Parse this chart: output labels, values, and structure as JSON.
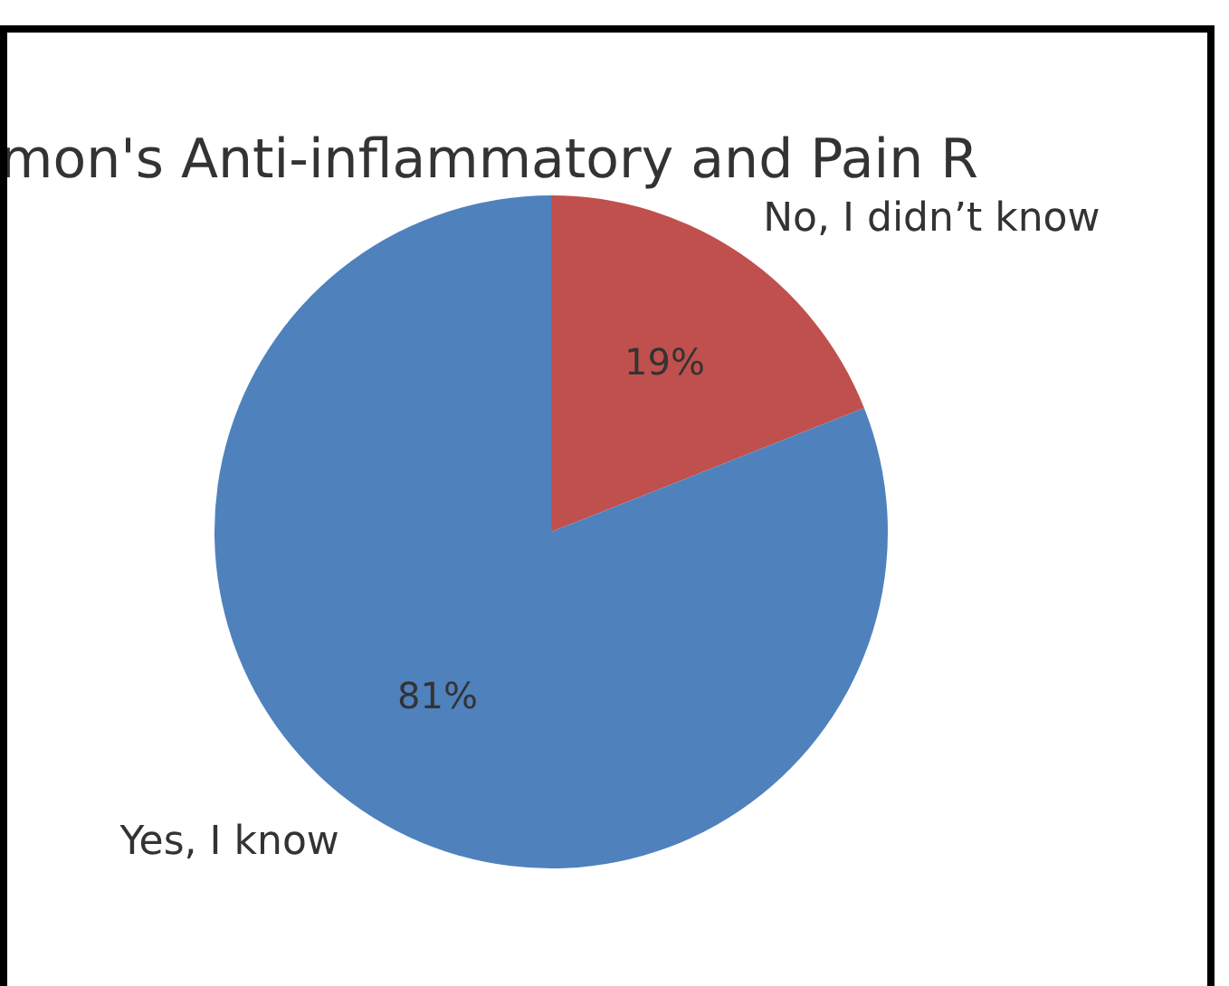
{
  "chart_data": {
    "type": "pie",
    "title": "mon's Anti-inflammatory and Pain R",
    "categories": [
      "No, I didn’t know",
      "Yes, I know"
    ],
    "values": [
      19,
      81
    ],
    "colors": [
      "#c0504d",
      "#4f81bd"
    ],
    "value_labels": [
      "19%",
      "81%"
    ],
    "legend": false
  }
}
